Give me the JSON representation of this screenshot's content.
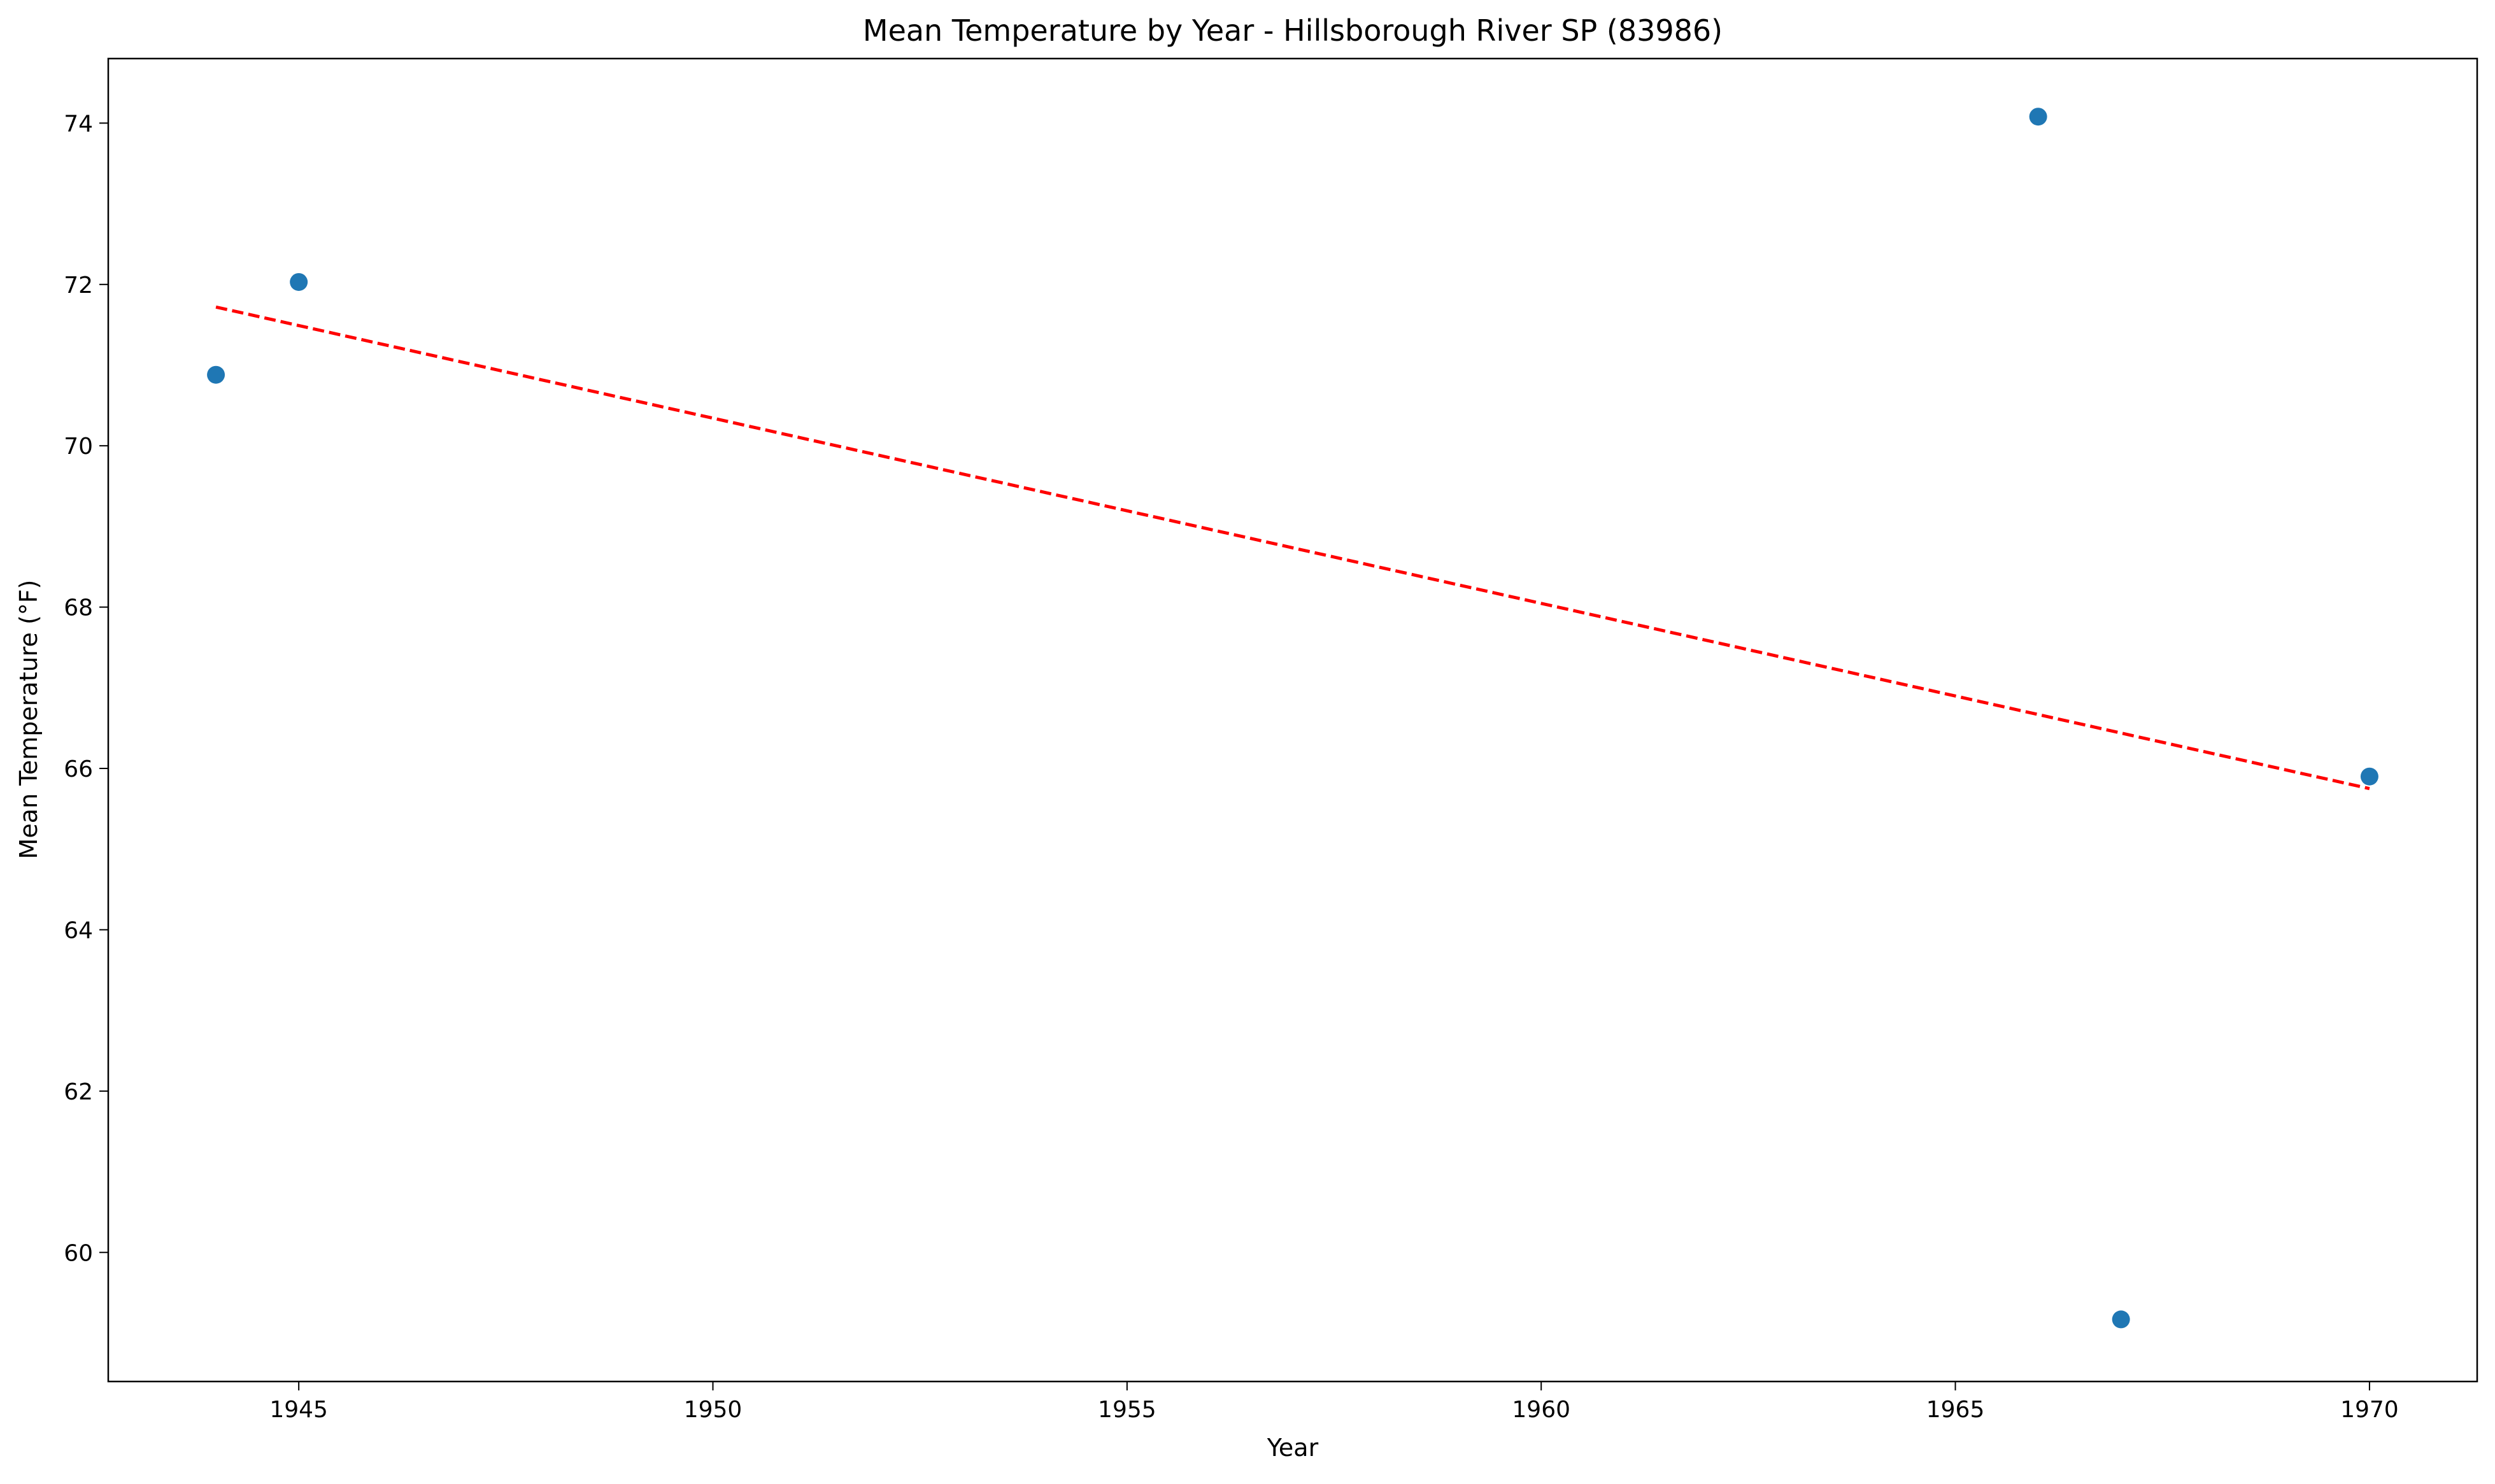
{
  "chart_data": {
    "type": "scatter",
    "title": "Mean Temperature by Year - Hillsborough River SP (83986)",
    "xlabel": "Year",
    "ylabel": "Mean Temperature (°F)",
    "xlim": [
      1942.7,
      1971.3
    ],
    "ylim": [
      58.4,
      74.8
    ],
    "xticks": [
      1945,
      1950,
      1955,
      1960,
      1965,
      1970
    ],
    "yticks": [
      60,
      62,
      64,
      66,
      68,
      70,
      72,
      74
    ],
    "grid": false,
    "legend": "none",
    "series": [
      {
        "type": "scatter",
        "color": "#1f77b4",
        "points": [
          {
            "x": 1944,
            "y": 70.88
          },
          {
            "x": 1945,
            "y": 72.03
          },
          {
            "x": 1966,
            "y": 74.08
          },
          {
            "x": 1967,
            "y": 59.17
          },
          {
            "x": 1970,
            "y": 65.9
          }
        ]
      },
      {
        "type": "line",
        "style": "dashed",
        "color": "#ff0000",
        "points": [
          {
            "x": 1944,
            "y": 71.72
          },
          {
            "x": 1970,
            "y": 65.75
          }
        ]
      }
    ]
  }
}
